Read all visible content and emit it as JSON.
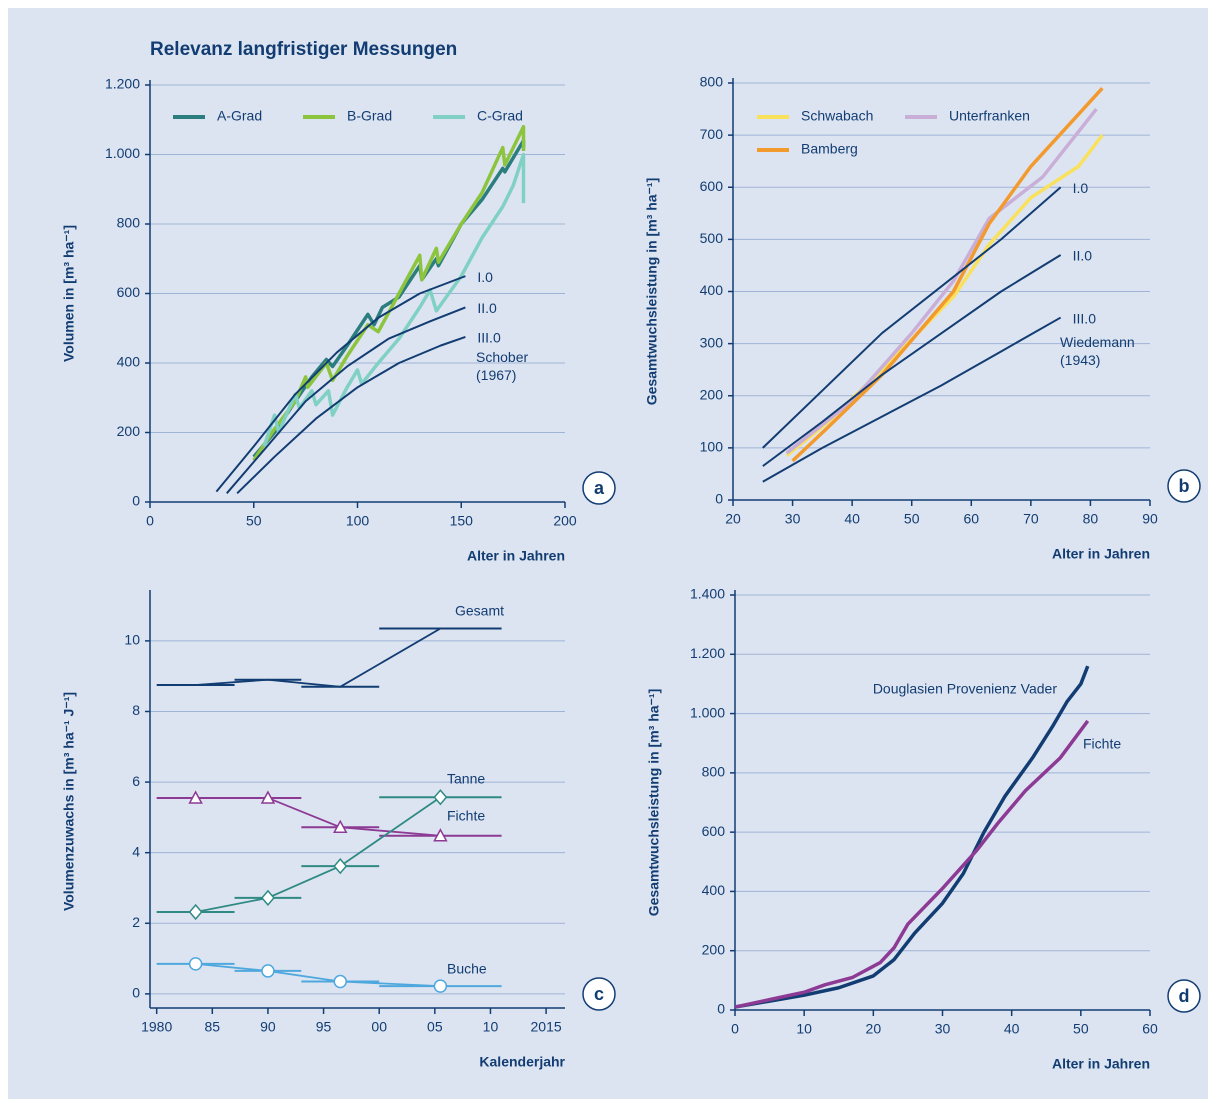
{
  "title": "Relevanz langfristiger Messungen",
  "chart_data": [
    {
      "type": "line",
      "panel": "a",
      "ylabel": "Volumen in [m³ ha⁻¹]",
      "xlabel": "Alter in Jahren",
      "xlim": [
        0,
        200
      ],
      "xticks": [
        0,
        50,
        100,
        150,
        200
      ],
      "ylim": [
        0,
        1200
      ],
      "yticks": [
        0,
        200,
        400,
        600,
        800,
        {
          "value": 1000,
          "label": "1.000"
        },
        {
          "value": 1200,
          "label": "1.200"
        }
      ],
      "grid": true,
      "legend": "top-left",
      "annotations": [
        "Schober (1967)"
      ],
      "series": [
        {
          "name": "A-Grad",
          "color": "#2b7d7e",
          "x": [
            50,
            60,
            70,
            78,
            85,
            88,
            95,
            105,
            108,
            112,
            120,
            130,
            131,
            138,
            139,
            150,
            160,
            170,
            171,
            180,
            180
          ],
          "values": [
            130,
            200,
            290,
            360,
            410,
            390,
            450,
            540,
            510,
            560,
            590,
            680,
            640,
            700,
            680,
            800,
            870,
            960,
            950,
            1040,
            1020
          ]
        },
        {
          "name": "B-Grad",
          "color": "#8cc43e",
          "x": [
            50,
            60,
            70,
            75,
            76,
            85,
            88,
            95,
            105,
            110,
            120,
            130,
            131,
            138,
            139,
            150,
            160,
            170,
            171,
            180,
            180
          ],
          "values": [
            120,
            210,
            290,
            360,
            330,
            400,
            350,
            420,
            510,
            490,
            600,
            710,
            640,
            730,
            690,
            800,
            890,
            1020,
            970,
            1080,
            1010
          ]
        },
        {
          "name": "C-Grad",
          "color": "#80d1c4",
          "x": [
            55,
            60,
            62,
            70,
            72,
            78,
            80,
            86,
            88,
            95,
            100,
            102,
            110,
            120,
            130,
            135,
            138,
            150,
            160,
            170,
            175,
            180,
            180
          ],
          "values": [
            160,
            250,
            200,
            310,
            270,
            320,
            280,
            320,
            250,
            330,
            380,
            340,
            400,
            470,
            560,
            610,
            550,
            650,
            760,
            850,
            910,
            1000,
            860
          ]
        },
        {
          "name": "I.0",
          "color": "#123d73",
          "in_legend": false,
          "x": [
            32,
            50,
            70,
            90,
            110,
            130,
            152
          ],
          "values": [
            30,
            160,
            310,
            430,
            530,
            600,
            650
          ]
        },
        {
          "name": "II.0",
          "color": "#123d73",
          "in_legend": false,
          "x": [
            37,
            55,
            75,
            95,
            115,
            135,
            152
          ],
          "values": [
            25,
            150,
            290,
            390,
            470,
            520,
            560
          ]
        },
        {
          "name": "III.0",
          "color": "#123d73",
          "in_legend": false,
          "x": [
            42,
            60,
            80,
            100,
            120,
            140,
            152
          ],
          "values": [
            25,
            130,
            240,
            330,
            400,
            450,
            475
          ]
        }
      ]
    },
    {
      "type": "line",
      "panel": "b",
      "ylabel": "Gesamtwuchsleistung in [m³ ha⁻¹]",
      "xlabel": "Alter in Jahren",
      "xlim": [
        20,
        90
      ],
      "xticks": [
        20,
        30,
        40,
        50,
        60,
        70,
        80,
        90
      ],
      "ylim": [
        0,
        800
      ],
      "yticks": [
        0,
        100,
        200,
        300,
        400,
        500,
        600,
        700,
        800
      ],
      "grid": true,
      "legend": "top-left",
      "annotations": [
        "Wiedemann (1943)"
      ],
      "series": [
        {
          "name": "Schwabach",
          "color": "#f9e15c",
          "x": [
            29,
            36,
            45,
            57,
            63,
            70,
            78,
            82
          ],
          "values": [
            85,
            150,
            250,
            390,
            490,
            580,
            640,
            700
          ]
        },
        {
          "name": "Unterfranken",
          "color": "#c9afd8",
          "x": [
            29,
            40,
            50,
            57,
            63,
            72,
            81
          ],
          "values": [
            90,
            190,
            320,
            420,
            540,
            620,
            750
          ]
        },
        {
          "name": "Bamberg",
          "color": "#f29a2e",
          "x": [
            30,
            36,
            45,
            57,
            63,
            70,
            82
          ],
          "values": [
            75,
            140,
            240,
            400,
            530,
            640,
            790
          ]
        },
        {
          "name": "I.0",
          "color": "#123d73",
          "in_legend": false,
          "x": [
            25,
            35,
            45,
            55,
            65,
            75
          ],
          "values": [
            100,
            210,
            320,
            410,
            500,
            600
          ]
        },
        {
          "name": "II.0",
          "color": "#123d73",
          "in_legend": false,
          "x": [
            25,
            35,
            45,
            55,
            65,
            75
          ],
          "values": [
            65,
            150,
            240,
            320,
            400,
            470
          ]
        },
        {
          "name": "III.0",
          "color": "#123d73",
          "in_legend": false,
          "x": [
            25,
            35,
            45,
            55,
            65,
            75
          ],
          "values": [
            35,
            100,
            160,
            220,
            285,
            350
          ]
        }
      ]
    },
    {
      "type": "period",
      "panel": "c",
      "ylabel": "Volumenzuwachs in [m³ ha⁻¹ J⁻¹]",
      "xlabel": "Kalenderjahr",
      "xlim": [
        1979.4,
        2016.7
      ],
      "xticks": [
        1980,
        {
          "value": 1985,
          "label": "85"
        },
        {
          "value": 1990,
          "label": "90"
        },
        {
          "value": 1995,
          "label": "95"
        },
        {
          "value": 2000,
          "label": "00"
        },
        {
          "value": 2005,
          "label": "05"
        },
        {
          "value": 2010,
          "label": "10"
        },
        2015
      ],
      "ylim": [
        -0.4,
        11.3
      ],
      "yticks": [
        0,
        2,
        4,
        6,
        8,
        10
      ],
      "grid": true,
      "periods": [
        [
          1980,
          1987
        ],
        [
          1987,
          1993
        ],
        [
          1993,
          2000
        ],
        [
          2000,
          2011
        ]
      ],
      "series": [
        {
          "name": "Gesamt",
          "color": "#123d73",
          "marker": null,
          "values": [
            8.75,
            8.9,
            8.7,
            10.35
          ]
        },
        {
          "name": "Fichte",
          "color": "#8c3a94",
          "marker": "triangle",
          "values": [
            5.55,
            5.55,
            4.72,
            4.48
          ]
        },
        {
          "name": "Tanne",
          "color": "#2f8a83",
          "marker": "diamond",
          "values": [
            2.32,
            2.72,
            3.62,
            5.57
          ]
        },
        {
          "name": "Buche",
          "color": "#4fa8dd",
          "marker": "circle",
          "values": [
            0.85,
            0.65,
            0.35,
            0.22
          ]
        }
      ]
    },
    {
      "type": "line",
      "panel": "d",
      "ylabel": "Gesamtwuchsleistung in [m³ ha⁻¹]",
      "xlabel": "Alter in Jahren",
      "xlim": [
        0,
        60
      ],
      "xticks": [
        0,
        10,
        20,
        30,
        40,
        50,
        60
      ],
      "ylim": [
        0,
        1400
      ],
      "yticks": [
        0,
        200,
        400,
        600,
        800,
        {
          "value": 1000,
          "label": "1.000"
        },
        {
          "value": 1200,
          "label": "1.200"
        },
        {
          "value": 1400,
          "label": "1.400"
        }
      ],
      "grid": true,
      "legend": "none",
      "series": [
        {
          "name": "Douglasien Provenienz Vader",
          "color": "#123d73",
          "x": [
            0,
            5,
            10,
            15,
            20,
            23,
            26,
            30,
            33,
            36,
            39,
            43,
            46,
            48,
            50,
            51
          ],
          "values": [
            10,
            30,
            50,
            75,
            115,
            170,
            260,
            360,
            460,
            600,
            720,
            850,
            960,
            1040,
            1100,
            1160
          ]
        },
        {
          "name": "Fichte",
          "color": "#8c3a94",
          "x": [
            0,
            5,
            10,
            13,
            17,
            21,
            23,
            25,
            30,
            35,
            38,
            42,
            47,
            51
          ],
          "values": [
            10,
            35,
            60,
            85,
            110,
            160,
            210,
            290,
            410,
            540,
            630,
            740,
            850,
            975
          ]
        }
      ]
    }
  ]
}
